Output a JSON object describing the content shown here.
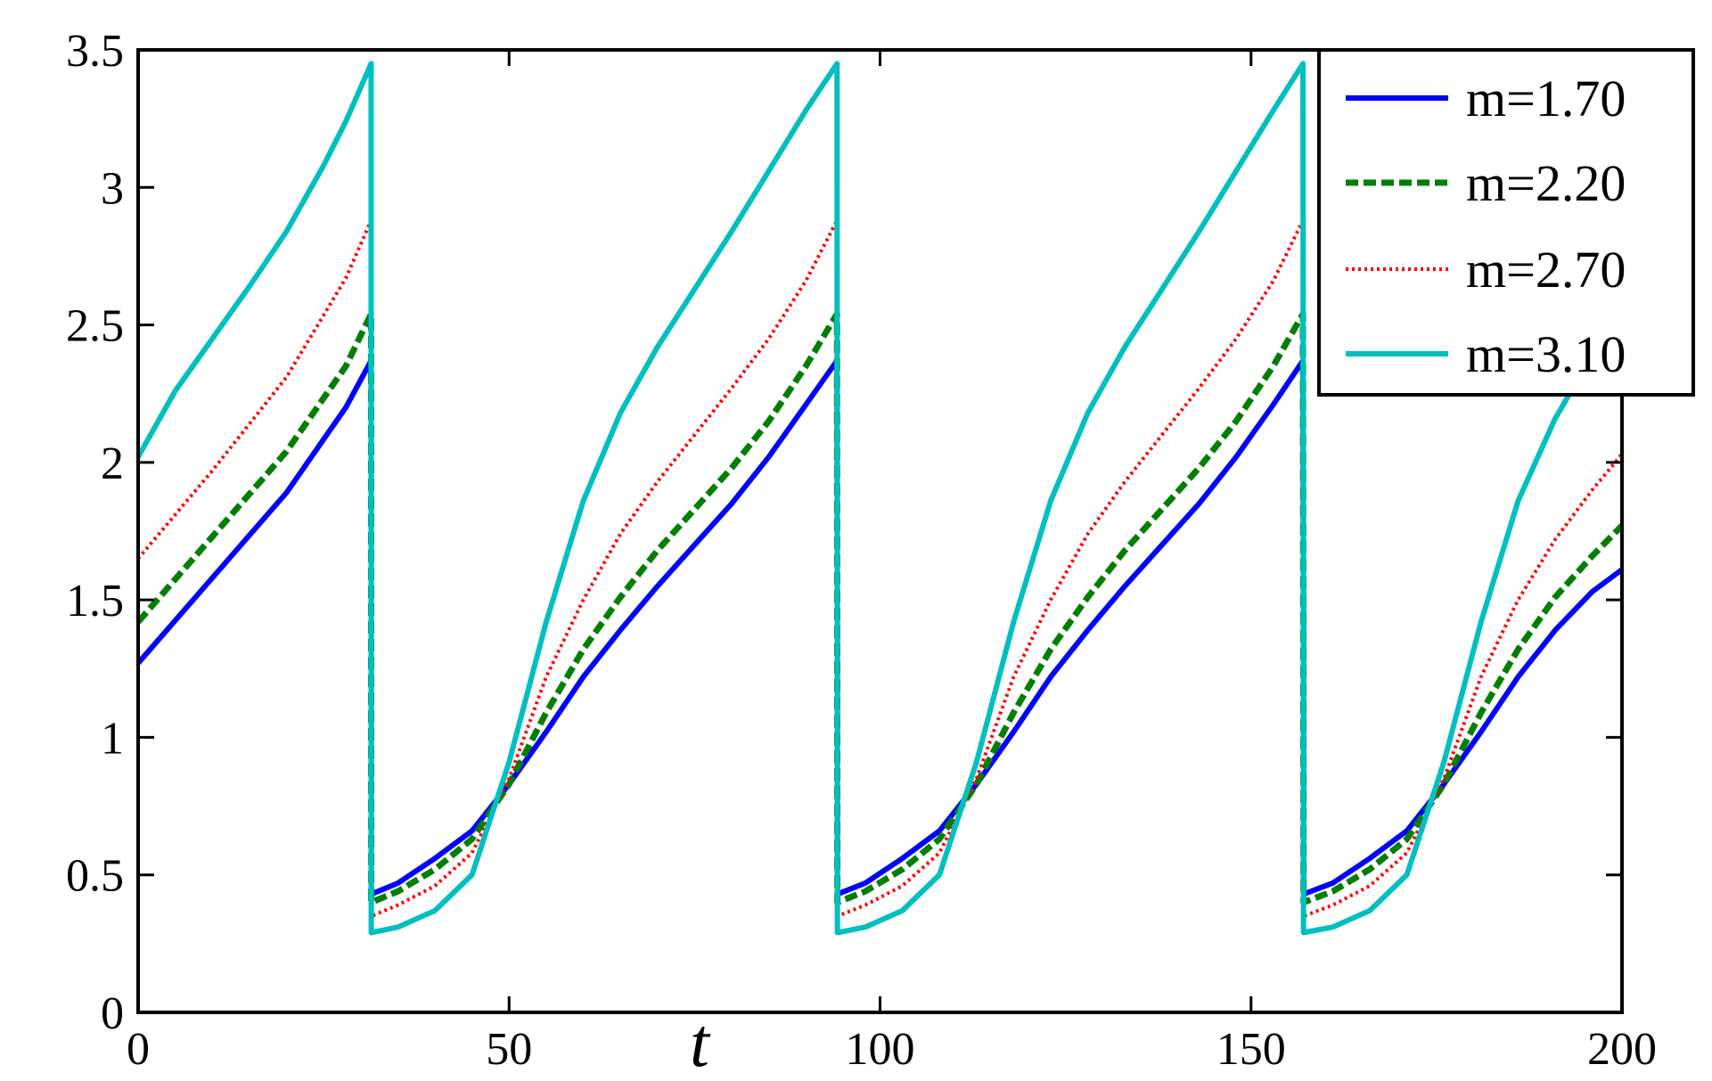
{
  "chart_data": {
    "type": "line",
    "title": "",
    "xlabel": "t",
    "ylabel": "",
    "xlim": [
      0,
      200
    ],
    "ylim": [
      0,
      3.5
    ],
    "x_ticks": [
      0,
      50,
      100,
      150,
      200
    ],
    "x_tick_labels": [
      "0",
      "50",
      "100",
      "150",
      "200"
    ],
    "y_ticks": [
      0,
      0.5,
      1,
      1.5,
      2,
      2.5,
      3,
      3.5
    ],
    "y_tick_labels": [
      "0",
      "0.5",
      "1",
      "1.5",
      "2",
      "2.5",
      "3",
      "3.5"
    ],
    "grid": false,
    "legend_position": "top-right",
    "period": 62.83,
    "reset_times": [
      31.42,
      94.25,
      157.08
    ],
    "series": [
      {
        "name": "m=1.70",
        "color": "#0000ff",
        "style": "solid",
        "points": [
          [
            0,
            1.27
          ],
          [
            10,
            1.58
          ],
          [
            20,
            1.89
          ],
          [
            28,
            2.2
          ],
          [
            31.4,
            2.37
          ],
          [
            31.42,
            1.4
          ],
          [
            31.42,
            0.43
          ],
          [
            35,
            0.47
          ],
          [
            40,
            0.56
          ],
          [
            45,
            0.66
          ],
          [
            50,
            0.83
          ],
          [
            55,
            1.02
          ],
          [
            60,
            1.22
          ],
          [
            65,
            1.39
          ],
          [
            70,
            1.55
          ],
          [
            75,
            1.7
          ],
          [
            80,
            1.85
          ],
          [
            85,
            2.02
          ],
          [
            90,
            2.21
          ],
          [
            94.2,
            2.37
          ],
          [
            94.25,
            1.4
          ],
          [
            94.25,
            0.43
          ],
          [
            98,
            0.47
          ],
          [
            103,
            0.56
          ],
          [
            108,
            0.66
          ],
          [
            113,
            0.83
          ],
          [
            118,
            1.02
          ],
          [
            123,
            1.22
          ],
          [
            128,
            1.39
          ],
          [
            133,
            1.55
          ],
          [
            138,
            1.7
          ],
          [
            143,
            1.85
          ],
          [
            148,
            2.02
          ],
          [
            153,
            2.21
          ],
          [
            157.0,
            2.37
          ],
          [
            157.08,
            1.4
          ],
          [
            157.08,
            0.43
          ],
          [
            161,
            0.47
          ],
          [
            166,
            0.56
          ],
          [
            171,
            0.66
          ],
          [
            176,
            0.83
          ],
          [
            181,
            1.02
          ],
          [
            186,
            1.22
          ],
          [
            191,
            1.39
          ],
          [
            196,
            1.53
          ],
          [
            200,
            1.61
          ]
        ]
      },
      {
        "name": "m=2.20",
        "color": "#007f00",
        "style": "dashed",
        "points": [
          [
            0,
            1.42
          ],
          [
            10,
            1.73
          ],
          [
            20,
            2.04
          ],
          [
            28,
            2.35
          ],
          [
            31.4,
            2.54
          ],
          [
            31.42,
            0.4
          ],
          [
            35,
            0.44
          ],
          [
            40,
            0.52
          ],
          [
            45,
            0.63
          ],
          [
            50,
            0.83
          ],
          [
            55,
            1.09
          ],
          [
            60,
            1.32
          ],
          [
            65,
            1.51
          ],
          [
            70,
            1.68
          ],
          [
            75,
            1.83
          ],
          [
            80,
            1.98
          ],
          [
            85,
            2.15
          ],
          [
            90,
            2.35
          ],
          [
            94.2,
            2.54
          ],
          [
            94.25,
            0.4
          ],
          [
            98,
            0.44
          ],
          [
            103,
            0.52
          ],
          [
            108,
            0.63
          ],
          [
            113,
            0.83
          ],
          [
            118,
            1.09
          ],
          [
            123,
            1.32
          ],
          [
            128,
            1.51
          ],
          [
            133,
            1.68
          ],
          [
            138,
            1.83
          ],
          [
            143,
            1.98
          ],
          [
            148,
            2.15
          ],
          [
            153,
            2.35
          ],
          [
            157.0,
            2.54
          ],
          [
            157.08,
            0.4
          ],
          [
            161,
            0.44
          ],
          [
            166,
            0.52
          ],
          [
            171,
            0.63
          ],
          [
            176,
            0.83
          ],
          [
            181,
            1.09
          ],
          [
            186,
            1.32
          ],
          [
            191,
            1.51
          ],
          [
            196,
            1.66
          ],
          [
            200,
            1.77
          ]
        ]
      },
      {
        "name": "m=2.70",
        "color": "#ff0000",
        "style": "dotted",
        "points": [
          [
            0,
            1.65
          ],
          [
            10,
            1.97
          ],
          [
            20,
            2.31
          ],
          [
            28,
            2.67
          ],
          [
            31.4,
            2.88
          ],
          [
            31.42,
            0.35
          ],
          [
            35,
            0.39
          ],
          [
            40,
            0.46
          ],
          [
            45,
            0.58
          ],
          [
            50,
            0.85
          ],
          [
            55,
            1.22
          ],
          [
            60,
            1.5
          ],
          [
            65,
            1.74
          ],
          [
            70,
            1.93
          ],
          [
            75,
            2.1
          ],
          [
            80,
            2.27
          ],
          [
            85,
            2.45
          ],
          [
            90,
            2.66
          ],
          [
            94.2,
            2.88
          ],
          [
            94.25,
            0.35
          ],
          [
            98,
            0.39
          ],
          [
            103,
            0.46
          ],
          [
            108,
            0.58
          ],
          [
            113,
            0.85
          ],
          [
            118,
            1.22
          ],
          [
            123,
            1.5
          ],
          [
            128,
            1.74
          ],
          [
            133,
            1.93
          ],
          [
            138,
            2.1
          ],
          [
            143,
            2.27
          ],
          [
            148,
            2.45
          ],
          [
            153,
            2.66
          ],
          [
            157.0,
            2.88
          ],
          [
            157.08,
            0.35
          ],
          [
            161,
            0.39
          ],
          [
            166,
            0.46
          ],
          [
            171,
            0.58
          ],
          [
            176,
            0.85
          ],
          [
            181,
            1.22
          ],
          [
            186,
            1.5
          ],
          [
            191,
            1.72
          ],
          [
            196,
            1.9
          ],
          [
            200,
            2.03
          ]
        ]
      },
      {
        "name": "m=3.10",
        "color": "#00bfbf",
        "style": "solid",
        "points": [
          [
            0,
            2.02
          ],
          [
            5,
            2.26
          ],
          [
            10,
            2.45
          ],
          [
            15,
            2.64
          ],
          [
            20,
            2.84
          ],
          [
            25,
            3.08
          ],
          [
            28,
            3.24
          ],
          [
            31.4,
            3.45
          ],
          [
            31.42,
            0.29
          ],
          [
            35,
            0.31
          ],
          [
            40,
            0.37
          ],
          [
            45,
            0.5
          ],
          [
            50,
            0.91
          ],
          [
            55,
            1.42
          ],
          [
            60,
            1.86
          ],
          [
            65,
            2.18
          ],
          [
            70,
            2.42
          ],
          [
            75,
            2.63
          ],
          [
            80,
            2.84
          ],
          [
            85,
            3.06
          ],
          [
            90,
            3.28
          ],
          [
            94.2,
            3.45
          ],
          [
            94.25,
            0.29
          ],
          [
            98,
            0.31
          ],
          [
            103,
            0.37
          ],
          [
            108,
            0.5
          ],
          [
            113,
            0.91
          ],
          [
            118,
            1.42
          ],
          [
            123,
            1.86
          ],
          [
            128,
            2.18
          ],
          [
            133,
            2.42
          ],
          [
            138,
            2.63
          ],
          [
            143,
            2.84
          ],
          [
            148,
            3.06
          ],
          [
            153,
            3.28
          ],
          [
            157.0,
            3.45
          ],
          [
            157.08,
            0.29
          ],
          [
            161,
            0.31
          ],
          [
            166,
            0.37
          ],
          [
            171,
            0.5
          ],
          [
            176,
            0.91
          ],
          [
            181,
            1.42
          ],
          [
            186,
            1.86
          ],
          [
            191,
            2.16
          ],
          [
            196,
            2.39
          ],
          [
            200,
            2.56
          ]
        ]
      }
    ]
  }
}
